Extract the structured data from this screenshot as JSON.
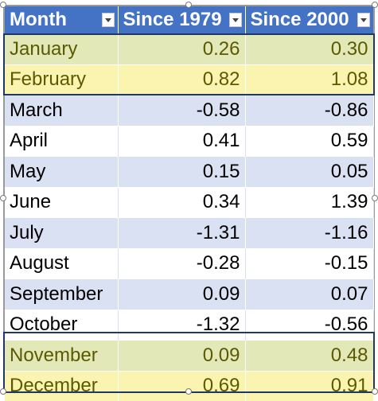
{
  "table": {
    "headers": [
      {
        "label": "Month"
      },
      {
        "label": "Since 1979"
      },
      {
        "label": "Since 2000"
      }
    ],
    "rows": [
      {
        "month": "January",
        "since_1979": "0.26",
        "since_2000": "0.30"
      },
      {
        "month": "February",
        "since_1979": "0.82",
        "since_2000": "1.08"
      },
      {
        "month": "March",
        "since_1979": "-0.58",
        "since_2000": "-0.86"
      },
      {
        "month": "April",
        "since_1979": "0.41",
        "since_2000": "0.59"
      },
      {
        "month": "May",
        "since_1979": "0.15",
        "since_2000": "0.05"
      },
      {
        "month": "June",
        "since_1979": "0.34",
        "since_2000": "1.39"
      },
      {
        "month": "July",
        "since_1979": "-1.31",
        "since_2000": "-1.16"
      },
      {
        "month": "August",
        "since_1979": "-0.28",
        "since_2000": "-0.15"
      },
      {
        "month": "September",
        "since_1979": "0.09",
        "since_2000": "0.07"
      },
      {
        "month": "October",
        "since_1979": "-1.32",
        "since_2000": "-0.56"
      },
      {
        "month": "November",
        "since_1979": "0.09",
        "since_2000": "0.48"
      },
      {
        "month": "December",
        "since_1979": "0.69",
        "since_2000": "0.91"
      }
    ],
    "icons": {
      "filter_dropdown": "chevron-down-icon"
    },
    "colors": {
      "header_bg": "#4472c4",
      "band_blue": "#d9e1f2",
      "highlight_olive": "#e3e8b8",
      "highlight_yellow": "#fbf4b1",
      "highlight_border": "#1f3864"
    }
  }
}
